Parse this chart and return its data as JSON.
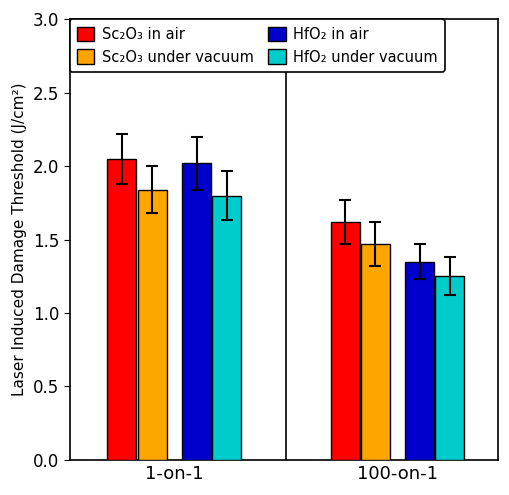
{
  "groups": [
    "1-on-1",
    "100-on-1"
  ],
  "series": [
    {
      "label": "Sc₂O₃ in air",
      "color": "#ff0000",
      "values": [
        2.05,
        1.62
      ],
      "errors": [
        0.17,
        0.15
      ]
    },
    {
      "label": "Sc₂O₃ under vacuum",
      "color": "#ffa500",
      "values": [
        1.84,
        1.47
      ],
      "errors": [
        0.16,
        0.15
      ]
    },
    {
      "label": "HfO₂ in air",
      "color": "#0000cc",
      "values": [
        2.02,
        1.35
      ],
      "errors": [
        0.18,
        0.12
      ]
    },
    {
      "label": "HfO₂ under vacuum",
      "color": "#00cccc",
      "values": [
        1.8,
        1.25
      ],
      "errors": [
        0.17,
        0.13
      ]
    }
  ],
  "ylabel": "Laser Induced Damage Threshold (J/cm²)",
  "ylim": [
    0,
    3.0
  ],
  "yticks": [
    0,
    0.5,
    1.0,
    1.5,
    2.0,
    2.5,
    3.0
  ],
  "bar_width": 0.13,
  "background_color": "#ffffff",
  "edge_color": "#000000",
  "group_centers": [
    0.42,
    1.42
  ],
  "divider_x": 0.92,
  "xlim": [
    -0.05,
    1.87
  ]
}
